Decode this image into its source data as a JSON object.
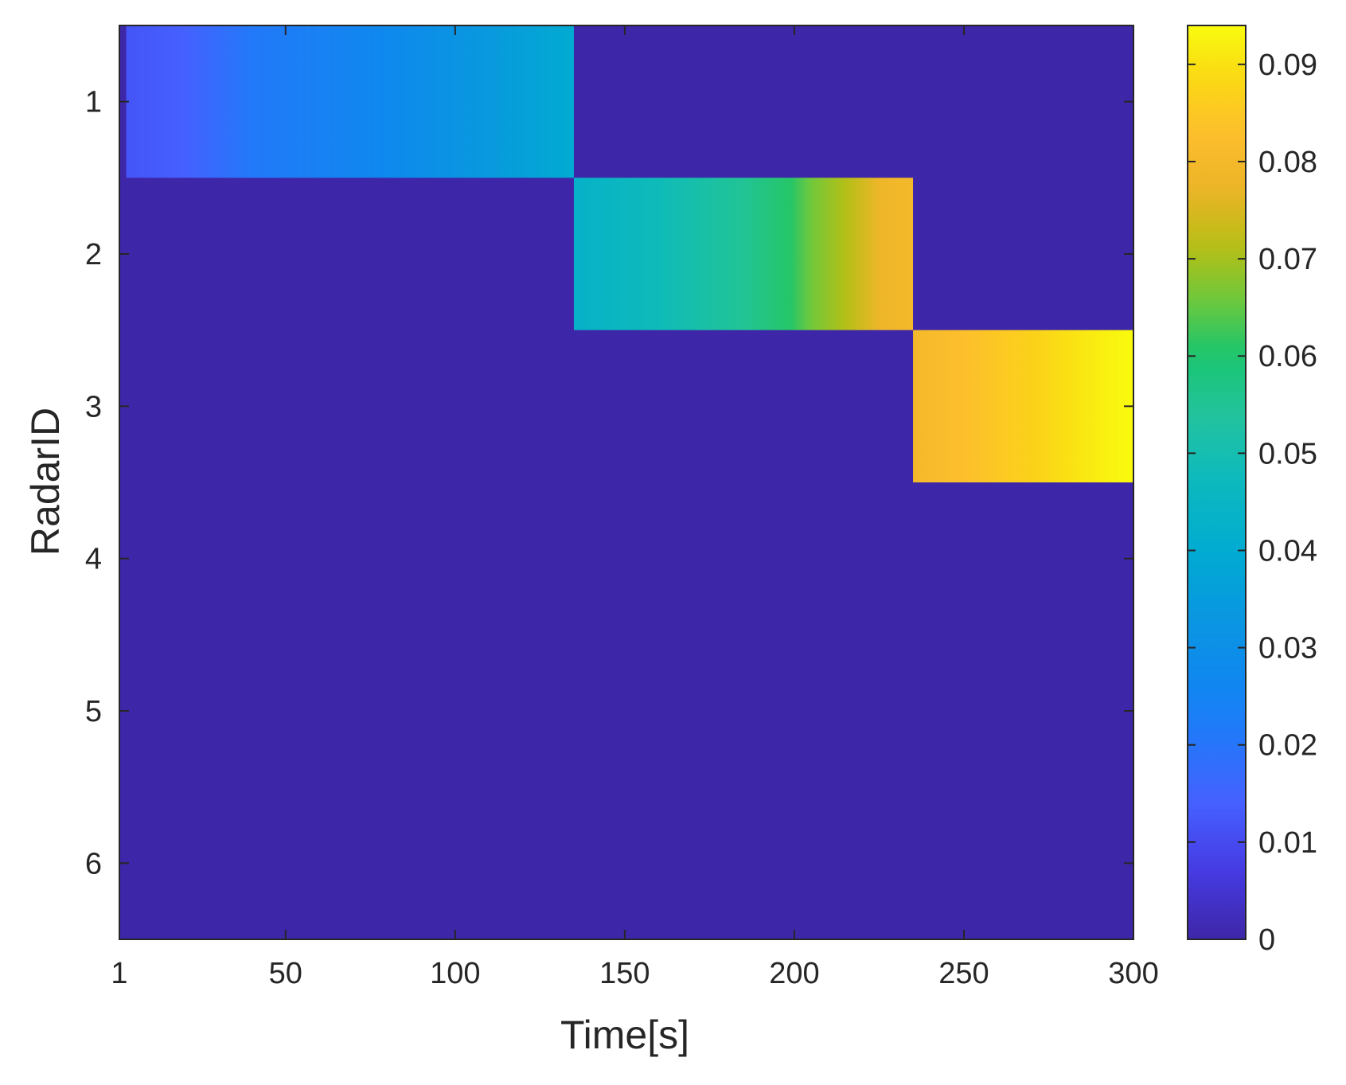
{
  "chart_data": {
    "type": "heatmap",
    "xlabel": "Time[s]",
    "ylabel": "RadarID",
    "xlim": [
      1,
      300
    ],
    "ylim": [
      0.5,
      6.5
    ],
    "x_ticks": [
      1,
      50,
      100,
      150,
      200,
      250,
      300
    ],
    "x_tick_labels": [
      "1",
      "50",
      "100",
      "150",
      "200",
      "250",
      "300"
    ],
    "y_ticks": [
      1,
      2,
      3,
      4,
      5,
      6
    ],
    "y_tick_labels": [
      "1",
      "2",
      "3",
      "4",
      "5",
      "6"
    ],
    "y_direction": "reverse",
    "grid": false,
    "colorbar": {
      "colormap": "parula",
      "clim": [
        0,
        0.094
      ],
      "ticks": [
        0,
        0.01,
        0.02,
        0.03,
        0.04,
        0.05,
        0.06,
        0.07,
        0.08,
        0.09
      ],
      "tick_labels": [
        "0",
        "0.01",
        "0.02",
        "0.03",
        "0.04",
        "0.05",
        "0.06",
        "0.07",
        "0.08",
        "0.09"
      ],
      "position": "right"
    },
    "background_value": 0,
    "active_segments": [
      {
        "radar": 1,
        "t_start": 3,
        "t_end": 135,
        "value_profile": [
          [
            3,
            0.012
          ],
          [
            20,
            0.014
          ],
          [
            40,
            0.021
          ],
          [
            80,
            0.027
          ],
          [
            110,
            0.034
          ],
          [
            135,
            0.04
          ]
        ]
      },
      {
        "radar": 2,
        "t_start": 135,
        "t_end": 235,
        "value_profile": [
          [
            135,
            0.043
          ],
          [
            160,
            0.048
          ],
          [
            185,
            0.055
          ],
          [
            199,
            0.061
          ],
          [
            205,
            0.066
          ],
          [
            215,
            0.071
          ],
          [
            225,
            0.078
          ],
          [
            235,
            0.08
          ]
        ]
      },
      {
        "radar": 3,
        "t_start": 235,
        "t_end": 300,
        "value_profile": [
          [
            235,
            0.08
          ],
          [
            250,
            0.083
          ],
          [
            270,
            0.087
          ],
          [
            290,
            0.092
          ],
          [
            300,
            0.094
          ]
        ]
      }
    ]
  }
}
